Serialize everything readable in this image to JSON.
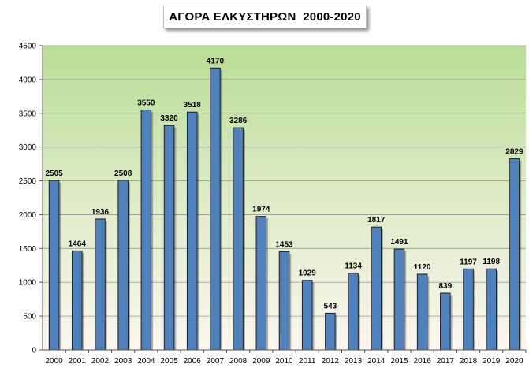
{
  "chart_data": {
    "type": "bar",
    "title": "ΑΓΟΡΑ ΕΛΚΥΣΤΗΡΩΝ  2000-2020",
    "xlabel": "",
    "ylabel": "",
    "categories": [
      "2000",
      "2001",
      "2002",
      "2003",
      "2004",
      "2005",
      "2006",
      "2007",
      "2008",
      "2009",
      "2010",
      "2011",
      "2012",
      "2013",
      "2014",
      "2015",
      "2016",
      "2017",
      "2018",
      "2019",
      "2020"
    ],
    "values": [
      2505,
      1464,
      1936,
      2508,
      3550,
      3320,
      3518,
      4170,
      3286,
      1974,
      1453,
      1029,
      543,
      1134,
      1817,
      1491,
      1120,
      839,
      1197,
      1198,
      2829
    ],
    "ylim": [
      0,
      4500
    ],
    "yticks": [
      0,
      500,
      1000,
      1500,
      2000,
      2500,
      3000,
      3500,
      4000,
      4500
    ],
    "grid": true,
    "legend": "none",
    "colors": {
      "bar": "#4f81bd",
      "bar_edge": "#1f1f1f",
      "plot_top": "#b9dd96",
      "plot_bottom": "#fbf6ee",
      "gridline": "#9a9a9a"
    }
  }
}
